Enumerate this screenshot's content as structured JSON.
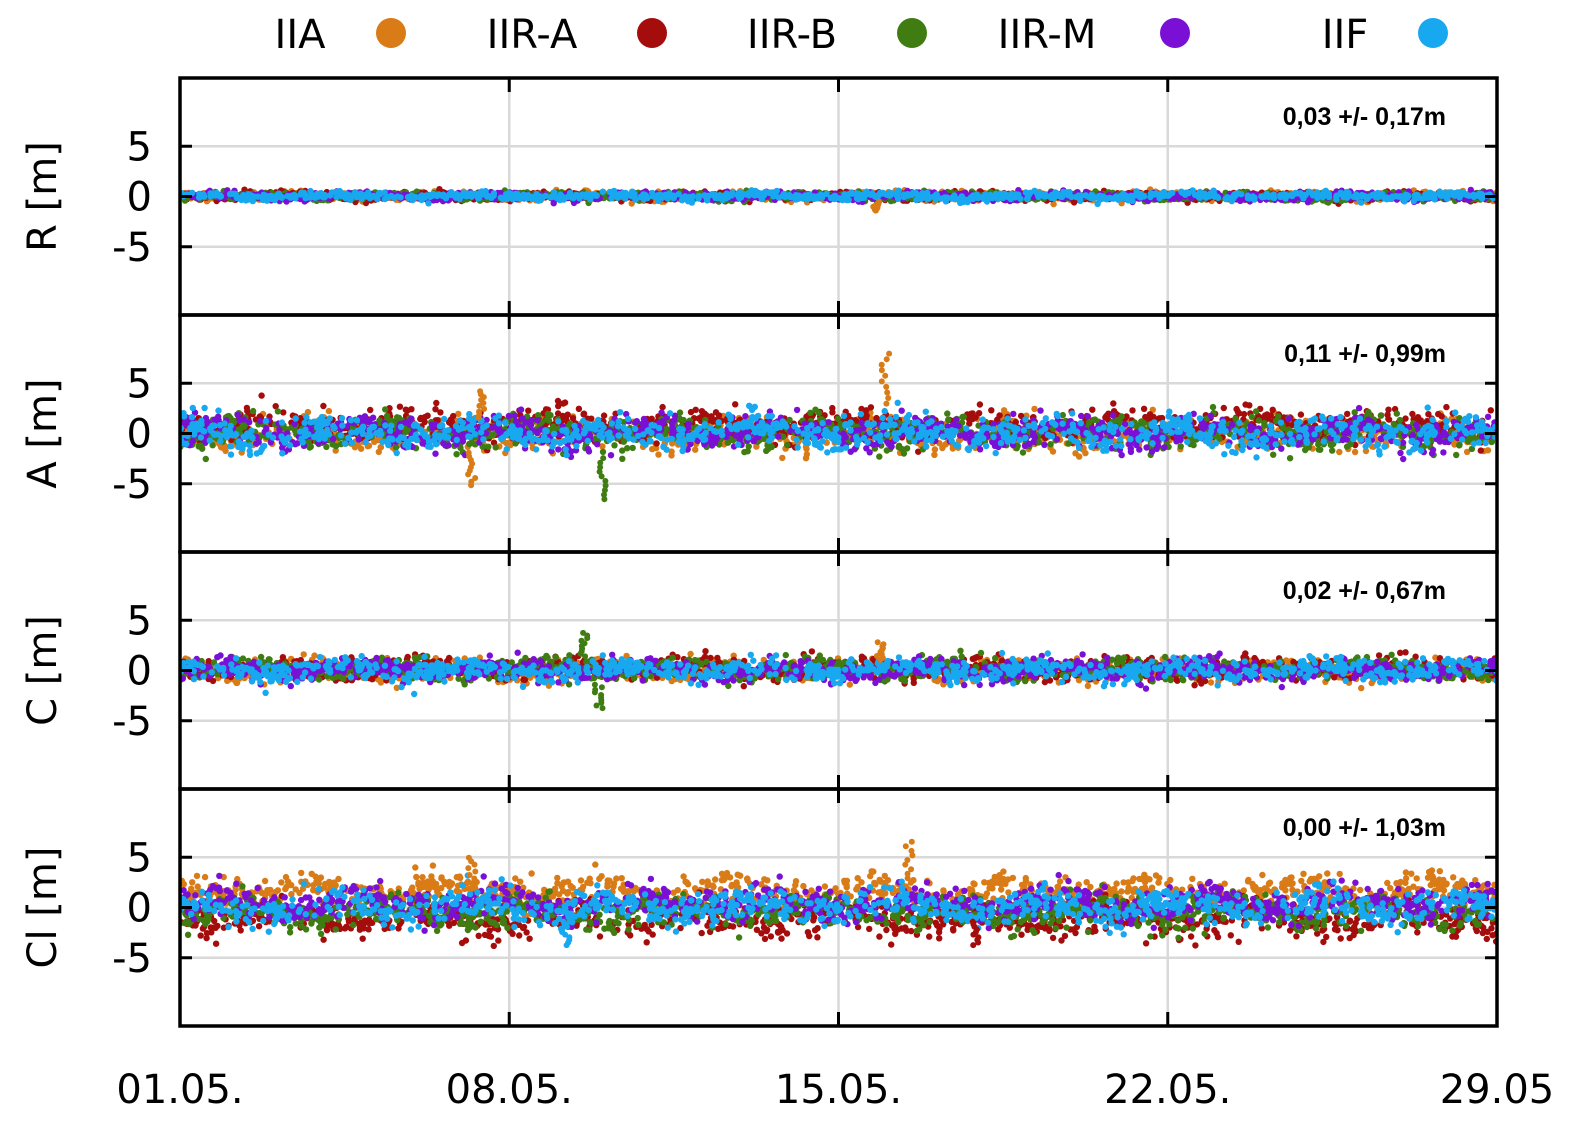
{
  "chart_data": {
    "type": "scatter",
    "legend": {
      "position": "top",
      "entries": [
        {
          "name": "IIA",
          "color": "#d97b16"
        },
        {
          "name": "IIR-A",
          "color": "#a50d0d"
        },
        {
          "name": "IIR-B",
          "color": "#3f7d13"
        },
        {
          "name": "IIR-M",
          "color": "#7a10d6"
        },
        {
          "name": "IIF",
          "color": "#18a8f0"
        }
      ]
    },
    "x_axis": {
      "ticks": [
        "01.05.",
        "08.05.",
        "15.05.",
        "22.05.",
        "29.05"
      ],
      "tick_values": [
        1,
        8,
        15,
        22,
        29
      ],
      "range": [
        1,
        29
      ],
      "grid": true
    },
    "panels": [
      {
        "ylabel": "R [m]",
        "yticks": [
          "5",
          "0",
          "-5"
        ],
        "ytick_values": [
          5,
          0,
          -5
        ],
        "ylim": [
          -10,
          10
        ],
        "stat": "0,03 +/- 0,17m",
        "mean": 0.03,
        "std": 0.17
      },
      {
        "ylabel": "A [m]",
        "yticks": [
          "5",
          "0",
          "-5"
        ],
        "ytick_values": [
          5,
          0,
          -5
        ],
        "ylim": [
          -10,
          10
        ],
        "stat": "0,11 +/- 0,99m",
        "mean": 0.11,
        "std": 0.99
      },
      {
        "ylabel": "C [m]",
        "yticks": [
          "5",
          "0",
          "-5"
        ],
        "ytick_values": [
          5,
          0,
          -5
        ],
        "ylim": [
          -10,
          10
        ],
        "stat": "0,02 +/- 0,67m",
        "mean": 0.02,
        "std": 0.67
      },
      {
        "ylabel": "Cl [m]",
        "yticks": [
          "5",
          "0",
          "-5"
        ],
        "ytick_values": [
          5,
          0,
          -5
        ],
        "ylim": [
          -10,
          10
        ],
        "stat": "0,00 +/- 1,03m",
        "mean": 0.0,
        "std": 1.03
      }
    ],
    "series_offsets": [
      {
        "name": "IIA",
        "R": 0.05,
        "A": -0.2,
        "C": 0.0,
        "Cl": 2.0
      },
      {
        "name": "IIR-A",
        "R": 0.0,
        "A": 1.0,
        "C": 0.2,
        "Cl": -1.5
      },
      {
        "name": "IIR-B",
        "R": 0.0,
        "A": 0.0,
        "C": 0.2,
        "Cl": -0.5
      },
      {
        "name": "IIR-M",
        "R": 0.0,
        "A": 0.0,
        "C": 0.0,
        "Cl": 0.5
      },
      {
        "name": "IIF",
        "R": 0.0,
        "A": 0.0,
        "C": 0.0,
        "Cl": 0.0
      }
    ],
    "outliers": [
      {
        "panel": "R",
        "series": "IIA",
        "x": 15.8,
        "y": -1.5
      },
      {
        "panel": "A",
        "series": "IIA",
        "x": 16.0,
        "y": 8.5
      },
      {
        "panel": "A",
        "series": "IIR-B",
        "x": 10.0,
        "y": -7.0
      },
      {
        "panel": "A",
        "series": "IIA",
        "x": 7.4,
        "y": 4.5
      },
      {
        "panel": "A",
        "series": "IIA",
        "x": 7.2,
        "y": -5.5
      },
      {
        "panel": "C",
        "series": "IIR-B",
        "x": 9.6,
        "y": 4.0
      },
      {
        "panel": "C",
        "series": "IIR-B",
        "x": 9.9,
        "y": -4.0
      },
      {
        "panel": "C",
        "series": "IIA",
        "x": 15.9,
        "y": 3.0
      },
      {
        "panel": "Cl",
        "series": "IIA",
        "x": 16.5,
        "y": 7.0
      },
      {
        "panel": "Cl",
        "series": "IIA",
        "x": 7.2,
        "y": 5.3
      },
      {
        "panel": "Cl",
        "series": "IIF",
        "x": 9.2,
        "y": -4.0
      },
      {
        "panel": "Cl",
        "series": "IIR-A",
        "x": 17.9,
        "y": -4.0
      }
    ]
  }
}
